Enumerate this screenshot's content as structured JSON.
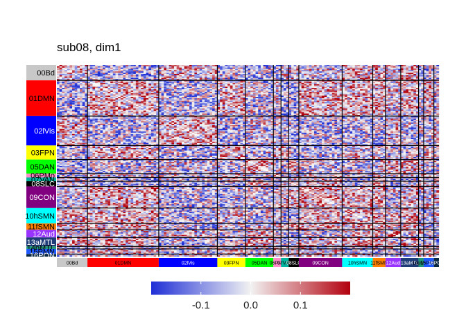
{
  "chart_data": {
    "type": "heatmap",
    "title": "sub08, dim1",
    "networks": [
      {
        "label": "00Bd",
        "size": 12,
        "color": "#c8c8c8",
        "text_color": "#000000"
      },
      {
        "label": "01DMN",
        "size": 28,
        "color": "#ff0000",
        "text_color": "#000000"
      },
      {
        "label": "02lVis",
        "size": 23,
        "color": "#0000ff",
        "text_color": "#ffffff"
      },
      {
        "label": "03FPN",
        "size": 11,
        "color": "#ffff00",
        "text_color": "#000000"
      },
      {
        "label": "05DAN",
        "size": 11,
        "color": "#00ff00",
        "text_color": "#000000"
      },
      {
        "label": "06PMo",
        "size": 3,
        "color": "#ff8cc8",
        "text_color": "#000000"
      },
      {
        "label": "07VAN",
        "size": 3,
        "color": "#00b4a0",
        "text_color": "#000000"
      },
      {
        "label": "08SLC",
        "size": 4,
        "color": "#000000",
        "text_color": "#ffffff"
      },
      {
        "label": "09CON",
        "size": 17,
        "color": "#800080",
        "text_color": "#ffffff"
      },
      {
        "label": "10hSMN",
        "size": 12,
        "color": "#00ffff",
        "text_color": "#000000"
      },
      {
        "label": "11fSMN",
        "size": 5,
        "color": "#ff8000",
        "text_color": "#000000"
      },
      {
        "label": "12Aud",
        "size": 6,
        "color": "#9933ff",
        "text_color": "#ffffff"
      },
      {
        "label": "13aMTL",
        "size": 7,
        "color": "#1e3c78",
        "text_color": "#ffffff"
      },
      {
        "label": "14pMTL",
        "size": 2,
        "color": "#1e9678",
        "text_color": "#000000"
      },
      {
        "label": "15PMN",
        "size": 4,
        "color": "#1e5aff",
        "text_color": "#000000"
      },
      {
        "label": "16PON",
        "size": 2,
        "color": "#0a2840",
        "text_color": "#ffffff"
      }
    ],
    "legend": {
      "ticks": [
        {
          "value": -0.1,
          "label": "-0.1"
        },
        {
          "value": 0.0,
          "label": "0.0"
        },
        {
          "value": 0.1,
          "label": "0.1"
        }
      ],
      "range": [
        -0.2,
        0.2
      ],
      "colors": {
        "low": "#1f2fd6",
        "mid": "#f2f2f2",
        "high": "#b2000d"
      }
    }
  }
}
